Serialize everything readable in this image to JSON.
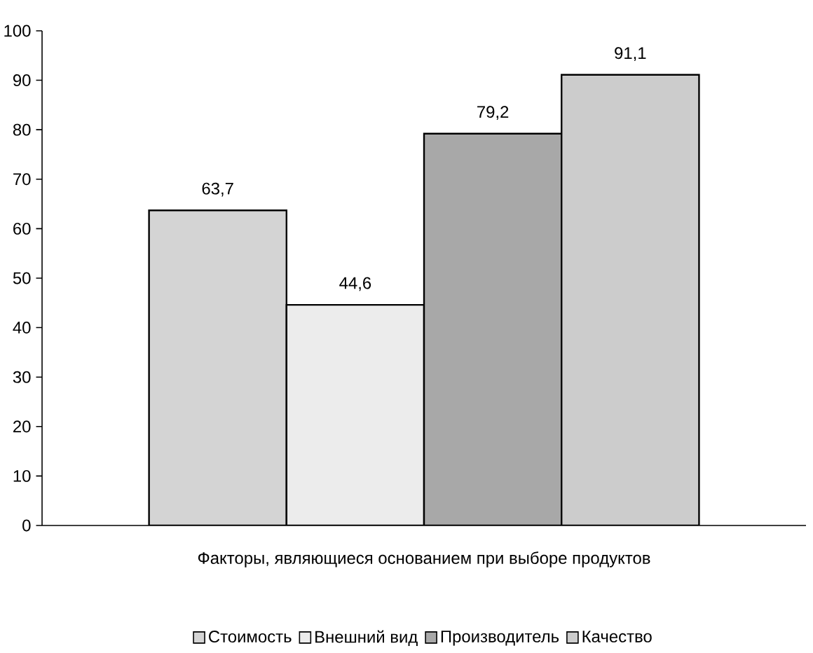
{
  "chart_data": {
    "type": "bar",
    "xlabel": "Факторы, являющиеся основанием при выборе продуктов",
    "categories": [
      null
    ],
    "series": [
      {
        "name": "Стоимость",
        "color": "#d4d4d4",
        "values": [
          63.7
        ],
        "value_labels": [
          "63,7"
        ]
      },
      {
        "name": "Внешний вид",
        "color": "#ececec",
        "values": [
          44.6
        ],
        "value_labels": [
          "44,6"
        ]
      },
      {
        "name": "Производитель",
        "color": "#a8a8a8",
        "values": [
          79.2
        ],
        "value_labels": [
          "79,2"
        ]
      },
      {
        "name": "Качество",
        "color": "#cccccc",
        "values": [
          91.1
        ],
        "value_labels": [
          "91,1"
        ]
      }
    ],
    "ylim": [
      0,
      100
    ],
    "yticks": [
      0,
      10,
      20,
      30,
      40,
      50,
      60,
      70,
      80,
      90,
      100
    ],
    "legend": "bottom"
  }
}
